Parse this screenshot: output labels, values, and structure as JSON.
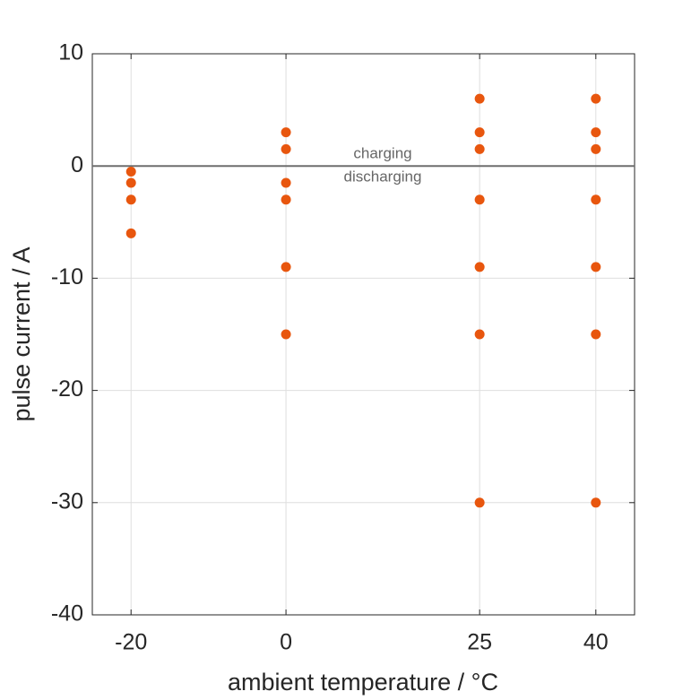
{
  "chart_data": {
    "type": "scatter",
    "xlabel": "ambient temperature / °C",
    "ylabel": "pulse current / A",
    "x": [
      -20,
      -20,
      -20,
      -20,
      0,
      0,
      0,
      0,
      0,
      0,
      25,
      25,
      25,
      25,
      25,
      25,
      25,
      40,
      40,
      40,
      40,
      40,
      40,
      40
    ],
    "series": [
      {
        "color": "#e8560e",
        "values": [
          -0.5,
          -1.5,
          -3,
          -6,
          3,
          1.5,
          -1.5,
          -3,
          -9,
          -15,
          6,
          3,
          1.5,
          -3,
          -9,
          -15,
          -30,
          6,
          3,
          1.5,
          -3,
          -9,
          -15,
          -30
        ]
      }
    ],
    "xlim": [
      -25,
      45
    ],
    "xticks": [
      -20,
      0,
      25,
      40
    ],
    "ylim": [
      -40,
      10
    ],
    "yticks": [
      -40,
      -30,
      -20,
      -10,
      0,
      10
    ],
    "grid": true,
    "reference_line": 0,
    "annotations": [
      "charging",
      "discharging"
    ]
  }
}
